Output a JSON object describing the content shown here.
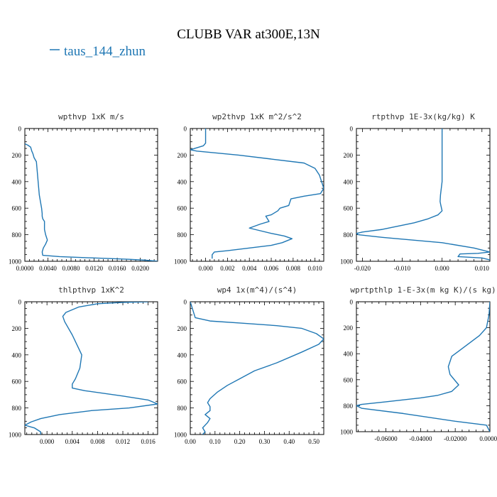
{
  "figure": {
    "title": "CLUBB VAR at300E,13N",
    "legend": {
      "label": "taus_144_zhun",
      "color": "#1f77b4",
      "placement": "top-left"
    }
  },
  "chart_data": [
    {
      "type": "line",
      "title": "wpthvp   1xK m/s",
      "xlim": [
        0.0,
        0.023
      ],
      "ylim": [
        1000,
        0
      ],
      "xticks": [
        "0.0000",
        "0.0040",
        "0.0080",
        "0.0120",
        "0.0160",
        "0.0200"
      ],
      "xtick_values": [
        0,
        0.004,
        0.008,
        0.012,
        0.016,
        0.02
      ],
      "yticks": [
        "0",
        "200",
        "400",
        "600",
        "800",
        "1000"
      ],
      "ytick_values": [
        0,
        200,
        400,
        600,
        800,
        1000
      ],
      "series": [
        {
          "name": "taus_144_zhun",
          "x": [
            0.0,
            0.0005,
            0.001,
            0.0012,
            0.0014,
            0.0016,
            0.002,
            0.0021,
            0.0023,
            0.0025,
            0.0027,
            0.0029,
            0.003,
            0.003,
            0.0031,
            0.0034,
            0.0034,
            0.0034,
            0.0036,
            0.0039,
            0.0036,
            0.0032,
            0.003,
            0.0031,
            0.006,
            0.012,
            0.018,
            0.021,
            0.023
          ],
          "y": [
            115,
            125,
            140,
            170,
            190,
            220,
            250,
            300,
            400,
            500,
            550,
            600,
            640,
            660,
            680,
            700,
            740,
            760,
            800,
            840,
            870,
            900,
            930,
            955,
            965,
            975,
            985,
            992,
            1000
          ]
        }
      ]
    },
    {
      "type": "line",
      "title": "wp2thvp   1xK m^2/s^2",
      "xlim": [
        -0.0014,
        0.0108
      ],
      "ylim": [
        1000,
        0
      ],
      "xticks": [
        "0.000",
        "0.002",
        "0.004",
        "0.006",
        "0.008",
        "0.010"
      ],
      "xtick_values": [
        0,
        0.002,
        0.004,
        0.006,
        0.008,
        0.01
      ],
      "yticks": [
        "0",
        "200",
        "400",
        "600",
        "800",
        "1000"
      ],
      "ytick_values": [
        0,
        200,
        400,
        600,
        800,
        1000
      ],
      "series": [
        {
          "name": "taus_144_zhun",
          "x": [
            0.0,
            0.0,
            -0.0002,
            -0.001,
            -0.0014,
            -0.0008,
            0.003,
            0.006,
            0.009,
            0.01,
            0.0104,
            0.0108,
            0.0105,
            0.009,
            0.0078,
            0.0076,
            0.0068,
            0.0066,
            0.006,
            0.0055,
            0.0058,
            0.005,
            0.004,
            0.006,
            0.0072,
            0.0079,
            0.007,
            0.006,
            0.004,
            0.002,
            0.0008,
            0.0006,
            0.0006
          ],
          "y": [
            0,
            110,
            130,
            150,
            160,
            170,
            200,
            230,
            260,
            300,
            350,
            450,
            490,
            510,
            530,
            580,
            600,
            620,
            650,
            660,
            700,
            720,
            750,
            790,
            810,
            830,
            860,
            880,
            900,
            920,
            930,
            950,
            980
          ]
        }
      ]
    },
    {
      "type": "line",
      "title": "rtpthvp   1E-3x(kg/kg) K",
      "xlim": [
        -0.0215,
        0.012
      ],
      "ylim": [
        1000,
        0
      ],
      "xticks": [
        "-0.020",
        "-0.010",
        "0.000",
        "0.010"
      ],
      "xtick_values": [
        -0.02,
        -0.01,
        0,
        0.01
      ],
      "yticks": [
        "0",
        "200",
        "400",
        "600",
        "800",
        "1000"
      ],
      "ytick_values": [
        0,
        200,
        400,
        600,
        800,
        1000
      ],
      "series": [
        {
          "name": "taus_144_zhun",
          "x": [
            0.0,
            0.0,
            0.0,
            -0.0004,
            -0.0005,
            -0.0003,
            0.0,
            -0.001,
            -0.0035,
            -0.007,
            -0.015,
            -0.02,
            -0.0215,
            -0.021,
            -0.015,
            0.0,
            0.008,
            0.012,
            0.009,
            0.0045,
            0.004,
            0.01,
            0.012
          ],
          "y": [
            0,
            200,
            400,
            500,
            550,
            580,
            620,
            650,
            680,
            710,
            760,
            780,
            790,
            800,
            820,
            860,
            900,
            930,
            940,
            945,
            965,
            975,
            990
          ]
        }
      ]
    },
    {
      "type": "line",
      "title": "thlpthvp   1xK^2",
      "xlim": [
        -0.0035,
        0.0175
      ],
      "ylim": [
        1000,
        0
      ],
      "xticks": [
        "0.000",
        "0.004",
        "0.008",
        "0.012",
        "0.016"
      ],
      "xtick_values": [
        0,
        0.004,
        0.008,
        0.012,
        0.016
      ],
      "yticks": [
        "0",
        "200",
        "400",
        "600",
        "800",
        "1000"
      ],
      "ytick_values": [
        0,
        200,
        400,
        600,
        800,
        1000
      ],
      "series": [
        {
          "name": "taus_144_zhun",
          "x": [
            0.016,
            0.012,
            0.008,
            0.005,
            0.003,
            0.0025,
            0.0028,
            0.004,
            0.005,
            0.0055,
            0.0052,
            0.0045,
            0.004,
            0.004,
            0.006,
            0.012,
            0.016,
            0.0175,
            0.013,
            0.007,
            0.002,
            -0.001,
            -0.0025,
            -0.0035,
            -0.002,
            -0.001,
            -0.001
          ],
          "y": [
            0,
            5,
            15,
            40,
            80,
            110,
            150,
            250,
            350,
            400,
            500,
            580,
            620,
            650,
            670,
            710,
            740,
            770,
            800,
            820,
            850,
            880,
            905,
            930,
            950,
            980,
            1000
          ]
        }
      ]
    },
    {
      "type": "line",
      "title": "wp4   1x(m^4)/(s^4)",
      "xlim": [
        0.0,
        0.54
      ],
      "ylim": [
        1000,
        0
      ],
      "xticks": [
        "0.00",
        "0.10",
        "0.20",
        "0.30",
        "0.40",
        "0.50"
      ],
      "xtick_values": [
        0,
        0.1,
        0.2,
        0.3,
        0.4,
        0.5
      ],
      "yticks": [
        "0",
        "200",
        "400",
        "600",
        "800",
        "1000"
      ],
      "ytick_values": [
        0,
        200,
        400,
        600,
        800,
        1000
      ],
      "series": [
        {
          "name": "taus_144_zhun",
          "x": [
            0.0,
            0.02,
            0.08,
            0.2,
            0.35,
            0.45,
            0.51,
            0.54,
            0.52,
            0.45,
            0.35,
            0.26,
            0.2,
            0.15,
            0.11,
            0.08,
            0.07,
            0.08,
            0.08,
            0.06,
            0.08,
            0.07,
            0.05,
            0.06,
            0.05
          ],
          "y": [
            0,
            120,
            145,
            160,
            180,
            200,
            240,
            280,
            320,
            380,
            460,
            520,
            580,
            630,
            680,
            730,
            760,
            790,
            820,
            850,
            880,
            910,
            950,
            980,
            1000
          ]
        }
      ]
    },
    {
      "type": "line",
      "title": "wprtpthlp   1-E-3x(m kg K)/(s kg)",
      "xlim": [
        -0.077,
        0.0
      ],
      "ylim": [
        1000,
        0
      ],
      "xticks": [
        "-0.06000",
        "-0.04000",
        "-0.02000",
        "0.00000"
      ],
      "xtick_values": [
        -0.06,
        -0.04,
        -0.02,
        0
      ],
      "yticks": [
        "0",
        "200",
        "400",
        "600",
        "800",
        "1000"
      ],
      "ytick_values": [
        0,
        200,
        400,
        600,
        800,
        1000
      ],
      "series": [
        {
          "name": "taus_144_zhun",
          "x": [
            0.0,
            -0.0005,
            -0.002,
            -0.006,
            -0.012,
            -0.018,
            -0.022,
            -0.024,
            -0.023,
            -0.018,
            -0.022,
            -0.03,
            -0.04,
            -0.06,
            -0.074,
            -0.077,
            -0.074,
            -0.05,
            -0.02,
            -0.002,
            0.0
          ],
          "y": [
            0,
            100,
            200,
            260,
            320,
            380,
            420,
            500,
            560,
            640,
            690,
            720,
            740,
            770,
            790,
            800,
            820,
            860,
            920,
            950,
            1000
          ]
        }
      ]
    }
  ]
}
